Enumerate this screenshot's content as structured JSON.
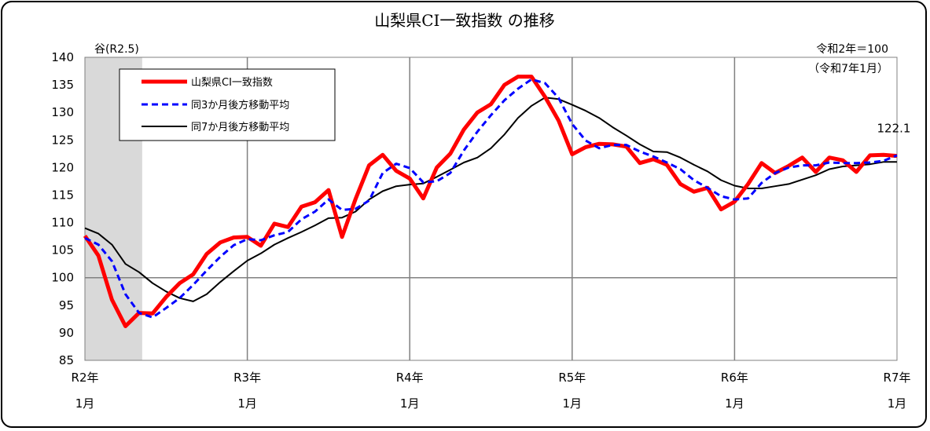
{
  "chart_data": {
    "type": "line",
    "title": "山梨県CI一致指数 の推移",
    "note_base": "令和2年＝100",
    "note_period": "（令和7年1月）",
    "recession_label": "谷(R2.5)",
    "last_value_label": "122.1",
    "ylim": [
      85,
      140
    ],
    "yticks": [
      "85",
      "90",
      "95",
      "100",
      "105",
      "110",
      "115",
      "120",
      "125",
      "130",
      "135",
      "140"
    ],
    "xticks": [
      {
        "year": "R2年",
        "month": "1月"
      },
      {
        "year": "R3年",
        "month": "1月"
      },
      {
        "year": "R4年",
        "month": "1月"
      },
      {
        "year": "R5年",
        "month": "1月"
      },
      {
        "year": "R6年",
        "month": "1月"
      },
      {
        "year": "R7年",
        "month": "1月"
      }
    ],
    "shade_months": [
      0,
      4
    ],
    "reference_line": 100,
    "colors": {
      "ci": "#ff0000",
      "ma3": "#0000ff",
      "ma7": "#000000",
      "shade": "#d9d9d9",
      "grid": "#808080"
    },
    "series": [
      {
        "name": "山梨県CI一致指数",
        "values": [
          107.6,
          104.0,
          96.0,
          91.2,
          93.6,
          93.5,
          96.5,
          99.0,
          100.6,
          104.3,
          106.4,
          107.3,
          107.4,
          105.8,
          109.8,
          109.2,
          112.9,
          113.7,
          115.9,
          107.4,
          114.3,
          120.4,
          122.3,
          119.4,
          118.0,
          114.4,
          120.0,
          122.5,
          126.9,
          130.0,
          131.5,
          135.0,
          136.5,
          136.5,
          132.8,
          128.5,
          122.4,
          123.7,
          124.3,
          124.2,
          123.8,
          120.8,
          121.5,
          120.5,
          117.0,
          115.6,
          116.3,
          112.4,
          113.8,
          117.0,
          120.8,
          119.0,
          120.3,
          121.8,
          119.2,
          121.8,
          121.3,
          119.2,
          122.2,
          122.3,
          122.1
        ]
      },
      {
        "name": "同3か月後方移動平均",
        "values": [
          107.2,
          106.0,
          103.0,
          97.0,
          93.6,
          92.8,
          94.5,
          96.3,
          98.7,
          101.3,
          103.8,
          105.9,
          107.0,
          106.8,
          107.7,
          108.3,
          110.6,
          112.0,
          114.2,
          112.3,
          112.5,
          114.0,
          119.0,
          120.7,
          119.9,
          117.3,
          117.5,
          119.0,
          123.1,
          126.5,
          129.5,
          132.2,
          134.3,
          136.0,
          135.3,
          132.6,
          127.9,
          124.9,
          123.5,
          124.1,
          124.1,
          122.9,
          122.0,
          120.9,
          119.7,
          117.7,
          116.3,
          114.8,
          114.2,
          114.4,
          117.2,
          119.0,
          120.0,
          120.4,
          120.4,
          120.9,
          120.8,
          120.8,
          120.9,
          121.2,
          122.2
        ]
      },
      {
        "name": "同7か月後方移動平均",
        "values": [
          109.0,
          108.0,
          106.0,
          102.5,
          101.0,
          99.0,
          97.5,
          96.3,
          95.7,
          97.0,
          99.2,
          101.2,
          103.1,
          104.4,
          106.0,
          107.2,
          108.3,
          109.5,
          110.8,
          110.9,
          112.0,
          114.2,
          115.7,
          116.6,
          116.9,
          117.1,
          118.3,
          119.6,
          120.9,
          121.8,
          123.5,
          126.0,
          129.0,
          131.2,
          132.7,
          132.4,
          131.4,
          130.3,
          129.0,
          127.3,
          125.8,
          124.2,
          122.9,
          122.8,
          121.8,
          120.5,
          119.3,
          117.7,
          116.7,
          116.2,
          116.2,
          116.6,
          117.0,
          117.8,
          118.6,
          119.7,
          120.2,
          120.4,
          120.6,
          121.0,
          121.0
        ]
      }
    ]
  }
}
